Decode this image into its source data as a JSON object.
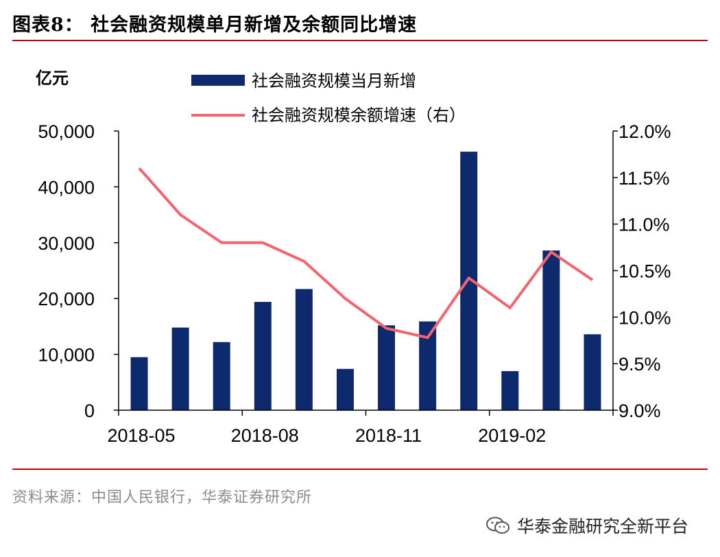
{
  "title": "图表8：  社会融资规模单月新增及余额同比增速",
  "source": "资料来源：中国人民银行，华泰证券研究所",
  "watermark": "华泰金融研究全新平台",
  "colors": {
    "bar": "#0e2a6e",
    "line": "#f4646c",
    "rule": "#c00000",
    "axis": "#000000"
  },
  "chart_data": {
    "type": "bar+line",
    "categories": [
      "2018-05",
      "2018-06",
      "2018-07",
      "2018-08",
      "2018-09",
      "2018-10",
      "2018-11",
      "2018-12",
      "2019-01",
      "2019-02",
      "2019-03",
      "2019-04"
    ],
    "x_tick_labels": [
      "2018-05",
      "2018-08",
      "2018-11",
      "2019-02"
    ],
    "left_unit": "亿元",
    "left_ylim": [
      0,
      50000
    ],
    "left_ticks": [
      "50,000",
      "40,000",
      "30,000",
      "20,000",
      "10,000",
      "0"
    ],
    "right_ylim": [
      9.0,
      12.0
    ],
    "right_ticks": [
      "12.0%",
      "11.5%",
      "11.0%",
      "10.5%",
      "10.0%",
      "9.5%",
      "9.0%"
    ],
    "series": [
      {
        "name": "社会融资规模当月新增",
        "kind": "bar",
        "axis": "left",
        "values": [
          9500,
          14800,
          12200,
          19400,
          21700,
          7400,
          15200,
          15900,
          46300,
          7000,
          28600,
          13600
        ]
      },
      {
        "name": "社会融资规模余额增速（右）",
        "kind": "line",
        "axis": "right",
        "values": [
          11.6,
          11.1,
          10.8,
          10.8,
          10.6,
          10.2,
          9.88,
          9.78,
          10.42,
          10.1,
          10.7,
          10.4
        ]
      }
    ],
    "legend_position": "top-center",
    "grid": false
  }
}
